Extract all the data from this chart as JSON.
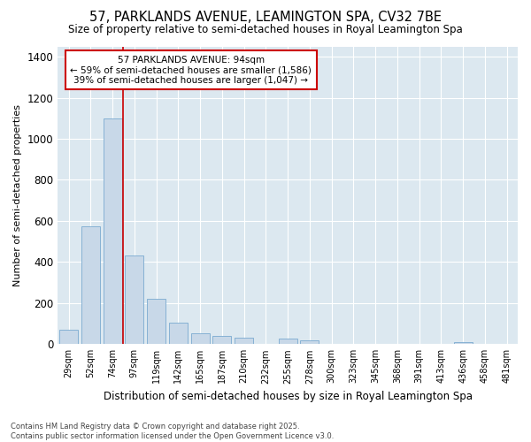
{
  "title": "57, PARKLANDS AVENUE, LEAMINGTON SPA, CV32 7BE",
  "subtitle": "Size of property relative to semi-detached houses in Royal Leamington Spa",
  "xlabel": "Distribution of semi-detached houses by size in Royal Leamington Spa",
  "ylabel": "Number of semi-detached properties",
  "footer_line1": "Contains HM Land Registry data © Crown copyright and database right 2025.",
  "footer_line2": "Contains public sector information licensed under the Open Government Licence v3.0.",
  "annotation_title": "57 PARKLANDS AVENUE: 94sqm",
  "annotation_line2": "← 59% of semi-detached houses are smaller (1,586)",
  "annotation_line3": "39% of semi-detached houses are larger (1,047) →",
  "bar_color": "#c8d8e8",
  "bar_edge_color": "#7aaad0",
  "vline_color": "#cc0000",
  "background_color": "#dce8f0",
  "categories": [
    "29sqm",
    "52sqm",
    "74sqm",
    "97sqm",
    "119sqm",
    "142sqm",
    "165sqm",
    "187sqm",
    "210sqm",
    "232sqm",
    "255sqm",
    "278sqm",
    "300sqm",
    "323sqm",
    "345sqm",
    "368sqm",
    "391sqm",
    "413sqm",
    "436sqm",
    "458sqm",
    "481sqm"
  ],
  "values": [
    70,
    575,
    1100,
    430,
    220,
    105,
    55,
    40,
    30,
    0,
    25,
    20,
    0,
    0,
    0,
    0,
    0,
    0,
    10,
    0,
    0
  ],
  "ylim": [
    0,
    1450
  ],
  "yticks": [
    0,
    200,
    400,
    600,
    800,
    1000,
    1200,
    1400
  ]
}
